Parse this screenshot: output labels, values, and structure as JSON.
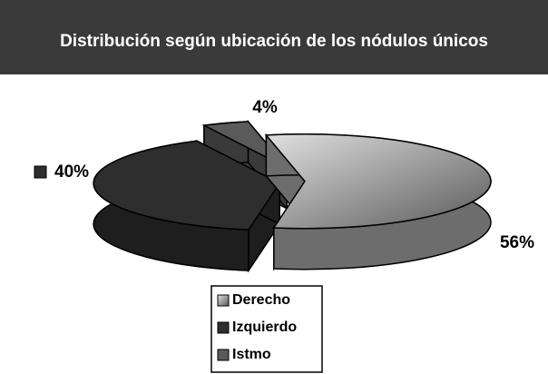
{
  "chart_data": {
    "type": "pie",
    "title": "Distribución según ubicación de los nódulos únicos",
    "categories": [
      "Derecho",
      "Izquierdo",
      "Istmo"
    ],
    "values": [
      56,
      40,
      4
    ],
    "value_labels": [
      "56%",
      "40%",
      "4%"
    ],
    "colors": [
      "#a8a8a8",
      "#2e2e2e",
      "#5a5a5a"
    ],
    "legend": "bottom"
  }
}
